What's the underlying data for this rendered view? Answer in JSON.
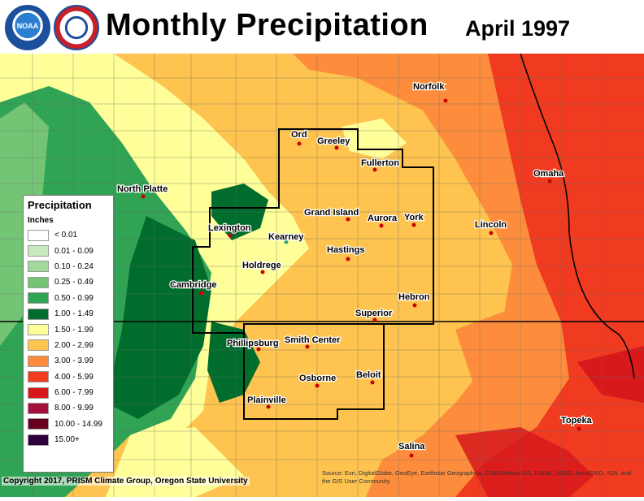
{
  "header": {
    "title": "Monthly Precipitation",
    "period": "April 1997",
    "noaa_logo_text": "NOAA",
    "nws_logo_text": "NATIONAL WEATHER SERVICE"
  },
  "legend": {
    "title": "Precipitation",
    "unit": "Inches",
    "items": [
      {
        "label": "< 0.01",
        "color": "#ffffff"
      },
      {
        "label": "0.01 - 0.09",
        "color": "#c7e9c0"
      },
      {
        "label": "0.10 - 0.24",
        "color": "#a1d99b"
      },
      {
        "label": "0.25 - 0.49",
        "color": "#74c476"
      },
      {
        "label": "0.50 - 0.99",
        "color": "#31a354"
      },
      {
        "label": "1.00 - 1.49",
        "color": "#006d2c"
      },
      {
        "label": "1.50 - 1.99",
        "color": "#ffff99"
      },
      {
        "label": "2.00 - 2.99",
        "color": "#fec44f"
      },
      {
        "label": "3.00 - 3.99",
        "color": "#fd8d3c"
      },
      {
        "label": "4.00 - 5.99",
        "color": "#f03b20"
      },
      {
        "label": "6.00 - 7.99",
        "color": "#d7191c"
      },
      {
        "label": "8.00 - 9.99",
        "color": "#a50f3c"
      },
      {
        "label": "10.00 - 14.99",
        "color": "#67001f"
      },
      {
        "label": "15.00+",
        "color": "#2d0039"
      }
    ]
  },
  "cities": [
    {
      "name": "Norfolk"
    },
    {
      "name": "Ord"
    },
    {
      "name": "Greeley"
    },
    {
      "name": "Fullerton"
    },
    {
      "name": "North Platte"
    },
    {
      "name": "Omaha"
    },
    {
      "name": "Grand Island"
    },
    {
      "name": "Aurora"
    },
    {
      "name": "York"
    },
    {
      "name": "Lexington"
    },
    {
      "name": "Kearney"
    },
    {
      "name": "Lincoln"
    },
    {
      "name": "Hastings"
    },
    {
      "name": "Holdrege"
    },
    {
      "name": "Cambridge"
    },
    {
      "name": "Hebron"
    },
    {
      "name": "Superior"
    },
    {
      "name": "Phillipsburg"
    },
    {
      "name": "Smith Center"
    },
    {
      "name": "Beloit"
    },
    {
      "name": "Osborne"
    },
    {
      "name": "Plainville"
    },
    {
      "name": "Topeka"
    },
    {
      "name": "Salina"
    }
  ],
  "copyright": "Copyright 2017, PRISM Climate Group, Oregon State University",
  "credits": "Source: Esri, DigitalGlobe, GeoEye, Earthstar Geographics, CNES/Airbus DS, USDA, USGS, AeroGRID, IGN, and the GIS User Community"
}
